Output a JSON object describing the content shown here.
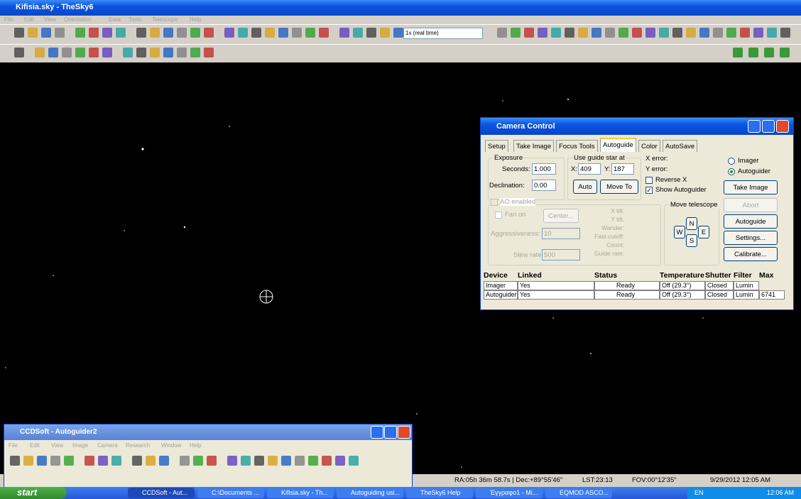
{
  "window": {
    "title": "Kifisia.sky - TheSky6",
    "menu": [
      "File",
      "Edit",
      "View",
      "Orientation",
      "Data",
      "Tools",
      "Telescope",
      "Help"
    ],
    "time_scale": "1x (real time)"
  },
  "camera_control": {
    "title": "Camera Control",
    "tabs": [
      "Setup",
      "Take Image",
      "Focus Tools",
      "Autoguide",
      "Color",
      "AutoSave"
    ],
    "exposure": {
      "label": "Exposure",
      "seconds_label": "Seconds:",
      "seconds": "1.000",
      "declination_label": "Declination:",
      "declination": "0.00"
    },
    "guide_star": {
      "label": "Use guide star at",
      "x_label": "X:",
      "x": "409",
      "y_label": "Y:",
      "y": "187",
      "auto": "Auto",
      "move_to": "Move To"
    },
    "errors": [
      "X error:",
      "Y error:"
    ],
    "reverse_x": "Reverse X",
    "show_autoguider": "Show Autoguider",
    "camera_options": [
      "Imager",
      "Autoguider"
    ],
    "buttons": [
      "Take Image",
      "Abort",
      "Autoguide",
      "Settings...",
      "Calibrate..."
    ],
    "ao": {
      "enabled": "AO enabled",
      "fan_on": "Fan on",
      "center": "Center...",
      "aggressiveness_label": "Aggressiveness:",
      "aggressiveness": "10",
      "slew_rate_label": "Slew rate:",
      "slew_rate": "500",
      "readouts": [
        "X tilt:",
        "Y tilt:",
        "Wander:",
        "Fast cutoff:",
        "Count:",
        "Guide rate:"
      ]
    },
    "move_telescope": {
      "label": "Move telescope",
      "directions": [
        "N",
        "W",
        "E",
        "S"
      ]
    },
    "devices": {
      "columns": [
        "Device",
        "Linked",
        "Status",
        "Temperature",
        "Shutter",
        "Filter",
        "Max"
      ],
      "rows": [
        [
          "Imager",
          "Yes",
          "Ready",
          "Off (29.3°)",
          "Closed",
          "Lumin"
        ],
        [
          "Autoguider",
          "Yes",
          "Ready",
          "Off (29.3°)",
          "Closed",
          "Lumin",
          "6741"
        ]
      ]
    }
  },
  "ccdsoft": {
    "title": "CCDSoft - Autoguider2",
    "menu": [
      "File",
      "Edit",
      "View",
      "Image",
      "Camera",
      "Research",
      "Window",
      "Help"
    ]
  },
  "status_bar": [
    "RA:05h 36m 58.7s | Dec:+89°55'46\"",
    "LST:23:13",
    "FOV:00°12'35\"",
    "9/29/2012 12:05 AM"
  ],
  "taskbar": {
    "start": "start",
    "tasks": [
      "CCDSoft - Aut...",
      "C:\\Documents ...",
      "Kifisia.sky - Th...",
      "Autoguiding usi...",
      "TheSky6 Help",
      "Έγγραφο1 - Mi...",
      "EQMOD ASCO..."
    ],
    "language": "EN",
    "clock": "12:06 AM"
  }
}
